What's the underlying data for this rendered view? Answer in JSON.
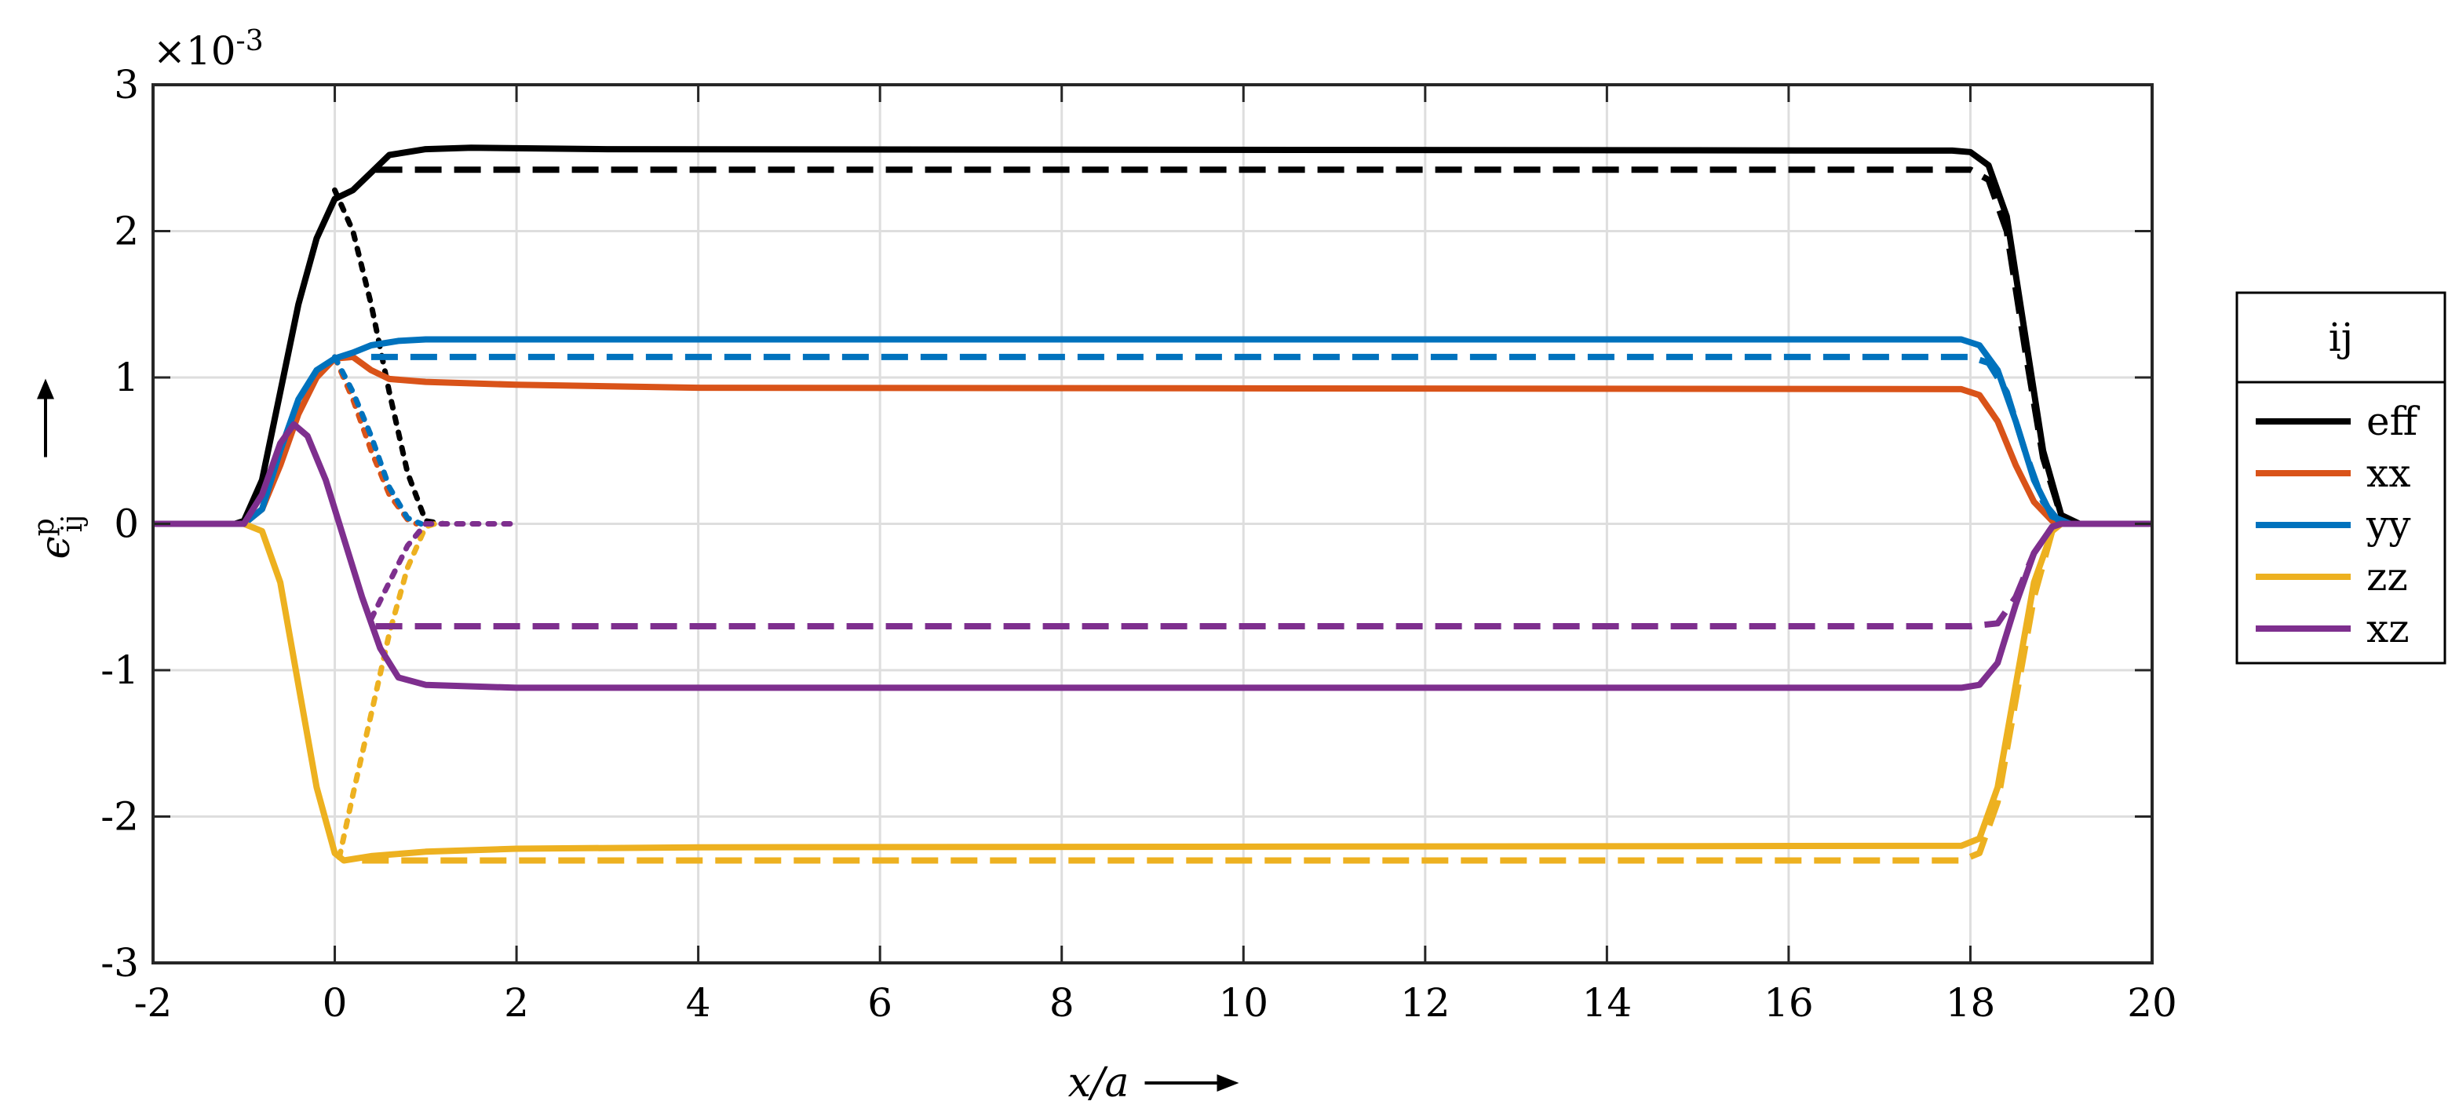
{
  "chart_data": {
    "type": "line",
    "title": "",
    "xlabel": "x/a",
    "ylabel": "ε_ij^p",
    "ylabel_parts": {
      "symbol": "ϵ",
      "superscript": "p",
      "subscript": "ij"
    },
    "y_multiplier": "×10",
    "y_multiplier_exp": "-3",
    "xlim": [
      -2,
      20
    ],
    "ylim": [
      -3,
      3
    ],
    "xticks": [
      "-2",
      "0",
      "2",
      "4",
      "6",
      "8",
      "10",
      "12",
      "14",
      "16",
      "18",
      "20"
    ],
    "yticks": [
      "3",
      "2",
      "1",
      "0",
      "-1",
      "-2",
      "-3"
    ],
    "grid": true,
    "legend": {
      "title": "ij",
      "placement": "right-outside"
    },
    "series": [
      {
        "name": "eff",
        "color": "#000000",
        "style": "solid",
        "points": [
          [
            -2,
            0
          ],
          [
            -1.1,
            0
          ],
          [
            -1,
            0.02
          ],
          [
            -0.8,
            0.3
          ],
          [
            -0.6,
            0.9
          ],
          [
            -0.4,
            1.5
          ],
          [
            -0.2,
            1.95
          ],
          [
            0,
            2.22
          ],
          [
            0.2,
            2.28
          ],
          [
            0.4,
            2.4
          ],
          [
            0.6,
            2.52
          ],
          [
            1,
            2.56
          ],
          [
            1.5,
            2.57
          ],
          [
            3,
            2.56
          ],
          [
            17.8,
            2.55
          ],
          [
            18,
            2.54
          ],
          [
            18.2,
            2.45
          ],
          [
            18.4,
            2.1
          ],
          [
            18.6,
            1.3
          ],
          [
            18.8,
            0.5
          ],
          [
            19,
            0.06
          ],
          [
            19.2,
            0
          ]
        ]
      },
      {
        "name": "eff",
        "color": "#000000",
        "style": "dashed",
        "points": [
          [
            0.45,
            2.42
          ],
          [
            18,
            2.42
          ],
          [
            18.2,
            2.35
          ],
          [
            18.4,
            2
          ],
          [
            18.6,
            1.2
          ],
          [
            18.8,
            0.45
          ],
          [
            19,
            0.05
          ],
          [
            19.2,
            0
          ]
        ]
      },
      {
        "name": "eff",
        "color": "#000000",
        "style": "dotted",
        "points": [
          [
            0,
            2.28
          ],
          [
            0.2,
            2
          ],
          [
            0.4,
            1.5
          ],
          [
            0.6,
            0.9
          ],
          [
            0.8,
            0.35
          ],
          [
            1,
            0.02
          ],
          [
            1.2,
            0
          ]
        ]
      },
      {
        "name": "xx",
        "color": "#D95319",
        "style": "solid",
        "points": [
          [
            -2,
            0
          ],
          [
            -1,
            0
          ],
          [
            -0.8,
            0.1
          ],
          [
            -0.6,
            0.4
          ],
          [
            -0.4,
            0.75
          ],
          [
            -0.2,
            1
          ],
          [
            0,
            1.13
          ],
          [
            0.2,
            1.14
          ],
          [
            0.4,
            1.05
          ],
          [
            0.6,
            0.99
          ],
          [
            1,
            0.97
          ],
          [
            2,
            0.95
          ],
          [
            4,
            0.93
          ],
          [
            17.9,
            0.92
          ],
          [
            18.1,
            0.88
          ],
          [
            18.3,
            0.7
          ],
          [
            18.5,
            0.4
          ],
          [
            18.7,
            0.15
          ],
          [
            18.9,
            0.02
          ],
          [
            19,
            0
          ]
        ]
      },
      {
        "name": "xx",
        "color": "#D95319",
        "style": "dotted",
        "points": [
          [
            0,
            1.14
          ],
          [
            0.2,
            0.85
          ],
          [
            0.4,
            0.5
          ],
          [
            0.6,
            0.2
          ],
          [
            0.8,
            0.03
          ],
          [
            0.9,
            0
          ]
        ]
      },
      {
        "name": "yy",
        "color": "#0072BD",
        "style": "solid",
        "points": [
          [
            -2,
            0
          ],
          [
            -1,
            0
          ],
          [
            -0.8,
            0.1
          ],
          [
            -0.6,
            0.5
          ],
          [
            -0.4,
            0.85
          ],
          [
            -0.2,
            1.05
          ],
          [
            0,
            1.13
          ],
          [
            0.2,
            1.17
          ],
          [
            0.4,
            1.22
          ],
          [
            0.7,
            1.25
          ],
          [
            1,
            1.26
          ],
          [
            17.9,
            1.26
          ],
          [
            18.1,
            1.22
          ],
          [
            18.3,
            1.05
          ],
          [
            18.5,
            0.7
          ],
          [
            18.7,
            0.3
          ],
          [
            18.9,
            0.05
          ],
          [
            19.1,
            0
          ]
        ]
      },
      {
        "name": "yy",
        "color": "#0072BD",
        "style": "dashed",
        "points": [
          [
            0.4,
            1.14
          ],
          [
            18,
            1.14
          ],
          [
            18.2,
            1.1
          ],
          [
            18.4,
            0.9
          ],
          [
            18.6,
            0.5
          ],
          [
            18.8,
            0.15
          ],
          [
            19,
            0
          ]
        ]
      },
      {
        "name": "yy",
        "color": "#0072BD",
        "style": "dotted",
        "points": [
          [
            0,
            1.14
          ],
          [
            0.2,
            0.9
          ],
          [
            0.4,
            0.6
          ],
          [
            0.6,
            0.25
          ],
          [
            0.8,
            0.04
          ],
          [
            0.95,
            0
          ]
        ]
      },
      {
        "name": "zz",
        "color": "#EDB120",
        "style": "solid",
        "points": [
          [
            -2,
            0
          ],
          [
            -1,
            0
          ],
          [
            -0.8,
            -0.05
          ],
          [
            -0.6,
            -0.4
          ],
          [
            -0.4,
            -1.1
          ],
          [
            -0.2,
            -1.8
          ],
          [
            0,
            -2.25
          ],
          [
            0.1,
            -2.3
          ],
          [
            0.4,
            -2.27
          ],
          [
            1,
            -2.24
          ],
          [
            2,
            -2.22
          ],
          [
            4,
            -2.21
          ],
          [
            17.9,
            -2.2
          ],
          [
            18.1,
            -2.15
          ],
          [
            18.3,
            -1.8
          ],
          [
            18.5,
            -1.1
          ],
          [
            18.7,
            -0.4
          ],
          [
            18.9,
            -0.05
          ],
          [
            19,
            0
          ]
        ]
      },
      {
        "name": "zz",
        "color": "#EDB120",
        "style": "dashed",
        "points": [
          [
            0.3,
            -2.3
          ],
          [
            17.9,
            -2.3
          ],
          [
            18.1,
            -2.25
          ],
          [
            18.3,
            -1.9
          ],
          [
            18.5,
            -1.2
          ],
          [
            18.7,
            -0.5
          ],
          [
            18.9,
            -0.05
          ],
          [
            19,
            0
          ]
        ]
      },
      {
        "name": "zz",
        "color": "#EDB120",
        "style": "dotted",
        "points": [
          [
            0.05,
            -2.28
          ],
          [
            0.2,
            -1.85
          ],
          [
            0.4,
            -1.3
          ],
          [
            0.6,
            -0.75
          ],
          [
            0.8,
            -0.3
          ],
          [
            1,
            -0.02
          ],
          [
            1.1,
            0
          ]
        ]
      },
      {
        "name": "xz",
        "color": "#7E2F8E",
        "style": "solid",
        "points": [
          [
            -2,
            0
          ],
          [
            -1,
            0
          ],
          [
            -0.8,
            0.2
          ],
          [
            -0.6,
            0.55
          ],
          [
            -0.45,
            0.68
          ],
          [
            -0.3,
            0.6
          ],
          [
            -0.1,
            0.3
          ],
          [
            0.1,
            -0.1
          ],
          [
            0.3,
            -0.5
          ],
          [
            0.5,
            -0.85
          ],
          [
            0.7,
            -1.05
          ],
          [
            1,
            -1.1
          ],
          [
            2,
            -1.12
          ],
          [
            17.9,
            -1.12
          ],
          [
            18.1,
            -1.1
          ],
          [
            18.3,
            -0.95
          ],
          [
            18.5,
            -0.55
          ],
          [
            18.7,
            -0.2
          ],
          [
            18.9,
            -0.02
          ],
          [
            19,
            0
          ],
          [
            20,
            0
          ]
        ]
      },
      {
        "name": "xz",
        "color": "#7E2F8E",
        "style": "dashed",
        "points": [
          [
            0.45,
            -0.7
          ],
          [
            18,
            -0.7
          ],
          [
            18.3,
            -0.68
          ],
          [
            18.5,
            -0.5
          ],
          [
            18.7,
            -0.2
          ],
          [
            18.9,
            -0.02
          ],
          [
            19,
            0
          ]
        ]
      },
      {
        "name": "xz",
        "color": "#7E2F8E",
        "style": "dotted",
        "points": [
          [
            0.4,
            -0.65
          ],
          [
            0.6,
            -0.4
          ],
          [
            0.8,
            -0.15
          ],
          [
            1,
            0
          ],
          [
            2,
            0
          ]
        ]
      }
    ],
    "legend_entries": [
      {
        "label": "eff",
        "color": "#000000"
      },
      {
        "label": "xx",
        "color": "#D95319"
      },
      {
        "label": "yy",
        "color": "#0072BD"
      },
      {
        "label": "zz",
        "color": "#EDB120"
      },
      {
        "label": "xz",
        "color": "#7E2F8E"
      }
    ]
  }
}
